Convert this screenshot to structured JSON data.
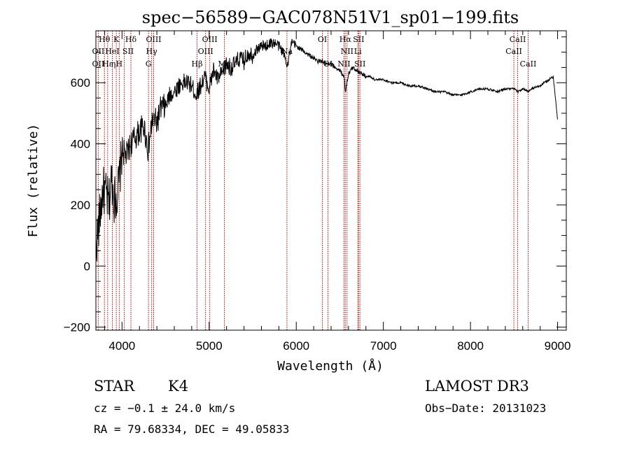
{
  "chart_data": {
    "type": "line",
    "title": "spec−56589−GAC078N51V1_sp01−199.fits",
    "xlabel": "Wavelength (Å)",
    "ylabel": "Flux (relative)",
    "xlim": [
      3700,
      9100
    ],
    "ylim": [
      -210,
      770
    ],
    "x_ticks": [
      4000,
      5000,
      6000,
      7000,
      8000,
      9000
    ],
    "x_tick_labels": [
      "4000",
      "5000",
      "6000",
      "7000",
      "8000",
      "9000"
    ],
    "y_ticks": [
      -200,
      0,
      200,
      400,
      600
    ],
    "y_tick_labels": [
      "−200",
      "0",
      "200",
      "400",
      "600"
    ],
    "grid": false,
    "series": [
      {
        "name": "flux",
        "color": "#000000",
        "x": [
          3700,
          3740,
          3780,
          3820,
          3850,
          3880,
          3910,
          3940,
          3970,
          4000,
          4050,
          4100,
          4150,
          4200,
          4250,
          4300,
          4350,
          4400,
          4450,
          4500,
          4550,
          4600,
          4650,
          4700,
          4750,
          4800,
          4850,
          4900,
          4950,
          5000,
          5050,
          5100,
          5150,
          5200,
          5250,
          5300,
          5350,
          5400,
          5450,
          5500,
          5550,
          5600,
          5650,
          5700,
          5750,
          5800,
          5850,
          5900,
          5950,
          6000,
          6050,
          6100,
          6150,
          6200,
          6250,
          6300,
          6350,
          6400,
          6450,
          6500,
          6550,
          6563,
          6600,
          6650,
          6700,
          6750,
          6800,
          6850,
          6900,
          6950,
          7000,
          7100,
          7200,
          7300,
          7400,
          7500,
          7600,
          7700,
          7800,
          7900,
          8000,
          8100,
          8200,
          8300,
          8400,
          8500,
          8542,
          8600,
          8662,
          8700,
          8800,
          8850,
          8900,
          8950,
          9000
        ],
        "values": [
          60,
          150,
          250,
          230,
          200,
          290,
          220,
          230,
          280,
          380,
          360,
          400,
          420,
          440,
          460,
          380,
          480,
          470,
          520,
          520,
          560,
          570,
          590,
          600,
          600,
          590,
          560,
          590,
          620,
          580,
          640,
          610,
          630,
          660,
          650,
          660,
          680,
          670,
          700,
          690,
          710,
          720,
          720,
          730,
          730,
          720,
          700,
          660,
          730,
          720,
          710,
          700,
          690,
          680,
          670,
          670,
          660,
          660,
          650,
          640,
          620,
          570,
          630,
          650,
          640,
          630,
          620,
          620,
          610,
          610,
          610,
          600,
          600,
          590,
          590,
          580,
          570,
          570,
          560,
          560,
          570,
          580,
          580,
          570,
          580,
          580,
          570,
          580,
          570,
          580,
          590,
          600,
          610,
          620,
          480
        ]
      }
    ],
    "line_marks": {
      "color": "#cc0000",
      "wavelengths": [
        3727,
        3798,
        3835,
        3889,
        3934,
        3968,
        4026,
        4102,
        4304,
        4340,
        4363,
        4861,
        4959,
        5007,
        5175,
        5893,
        6300,
        6364,
        6548,
        6563,
        6583,
        6707,
        6716,
        6731,
        8498,
        8542,
        8662
      ]
    },
    "line_labels": [
      {
        "text": "Hθ",
        "wavelength": 3798,
        "row": 1
      },
      {
        "text": "K",
        "wavelength": 3934,
        "row": 1
      },
      {
        "text": "Hδ",
        "wavelength": 4102,
        "row": 1
      },
      {
        "text": "OIII",
        "wavelength": 4363,
        "row": 1
      },
      {
        "text": "OIII",
        "wavelength": 5007,
        "row": 1
      },
      {
        "text": "OI",
        "wavelength": 6300,
        "row": 1
      },
      {
        "text": "Hα",
        "wavelength": 6563,
        "row": 1
      },
      {
        "text": "SII",
        "wavelength": 6716,
        "row": 1
      },
      {
        "text": "CaII",
        "wavelength": 8542,
        "row": 1
      },
      {
        "text": "OII",
        "wavelength": 3727,
        "row": 2
      },
      {
        "text": "HeI",
        "wavelength": 3889,
        "row": 2
      },
      {
        "text": "SII",
        "wavelength": 4070,
        "row": 2
      },
      {
        "text": "Hγ",
        "wavelength": 4340,
        "row": 2
      },
      {
        "text": "OIII",
        "wavelength": 4959,
        "row": 2
      },
      {
        "text": "Na",
        "wavelength": 5893,
        "row": 2
      },
      {
        "text": "NII",
        "wavelength": 6583,
        "row": 2
      },
      {
        "text": "Li",
        "wavelength": 6707,
        "row": 2
      },
      {
        "text": "CaII",
        "wavelength": 8498,
        "row": 2
      },
      {
        "text": "OII",
        "wavelength": 3727,
        "row": 3
      },
      {
        "text": "Hε",
        "wavelength": 3835,
        "row": 3
      },
      {
        "text": "η",
        "wavelength": 3900,
        "row": 3
      },
      {
        "text": "H",
        "wavelength": 3968,
        "row": 3
      },
      {
        "text": "G",
        "wavelength": 4304,
        "row": 3
      },
      {
        "text": "Hβ",
        "wavelength": 4861,
        "row": 3
      },
      {
        "text": "Mg",
        "wavelength": 5175,
        "row": 3
      },
      {
        "text": "OI",
        "wavelength": 6364,
        "row": 3
      },
      {
        "text": "NII",
        "wavelength": 6548,
        "row": 3
      },
      {
        "text": "SII",
        "wavelength": 6731,
        "row": 3
      },
      {
        "text": "CaII",
        "wavelength": 8662,
        "row": 3
      }
    ]
  },
  "info": {
    "object_class": "STAR",
    "subclass": "K4",
    "redshift": "cz = −0.1 ± 24.0 km/s",
    "coords": "RA =  79.68334, DEC =  49.05833",
    "survey": "LAMOST DR3",
    "obs_date": "Obs−Date: 20131023"
  }
}
